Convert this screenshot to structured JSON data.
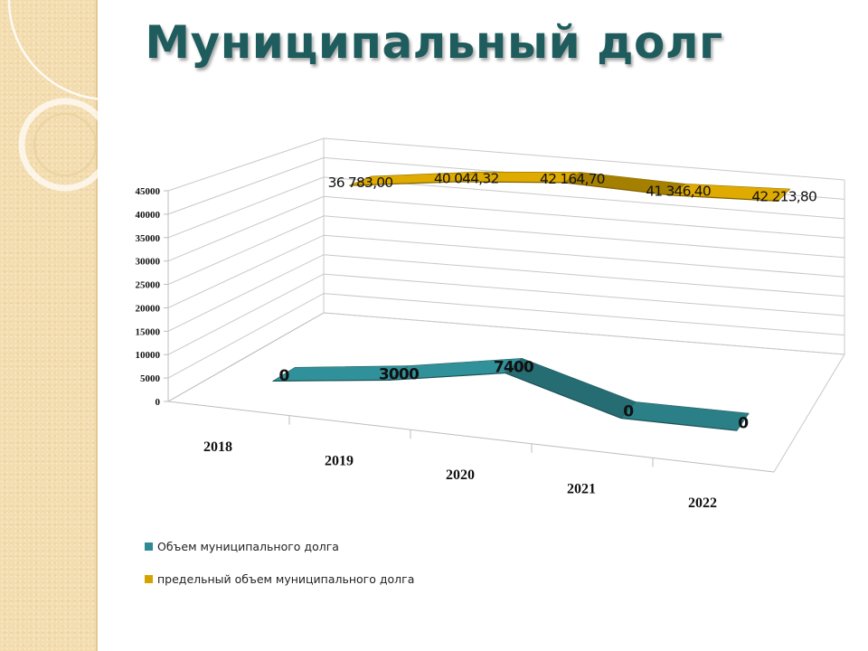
{
  "page": {
    "title": "Муниципальный долг"
  },
  "colors": {
    "series1": "#2f8a93",
    "series2": "#d4a300",
    "grid": "#c8c8c8",
    "title": "#1f5c5d"
  },
  "chart_data": {
    "type": "line",
    "variant": "3d-ribbon",
    "title": "",
    "categories": [
      "2018",
      "2019",
      "2020",
      "2021",
      "2022"
    ],
    "series": [
      {
        "name": "Объем муниципального долга",
        "values": [
          0,
          3000,
          7400,
          0,
          0
        ],
        "labels": [
          "0",
          "3000",
          "7400",
          "0",
          "0"
        ],
        "color": "#2f8a93"
      },
      {
        "name": "предельный объем муниципального долга",
        "values": [
          36783.0,
          40044.32,
          42164.7,
          41346.4,
          42213.8
        ],
        "labels": [
          "36 783,00",
          "40 044,32",
          "42 164,70",
          "41 346,40",
          "42 213,80"
        ],
        "color": "#d4a300"
      }
    ],
    "y_ticks": [
      "0",
      "5000",
      "10000",
      "15000",
      "20000",
      "25000",
      "30000",
      "35000",
      "40000",
      "45000"
    ],
    "ylim": [
      0,
      45000
    ],
    "grid": true,
    "legend_position": "bottom-left"
  }
}
